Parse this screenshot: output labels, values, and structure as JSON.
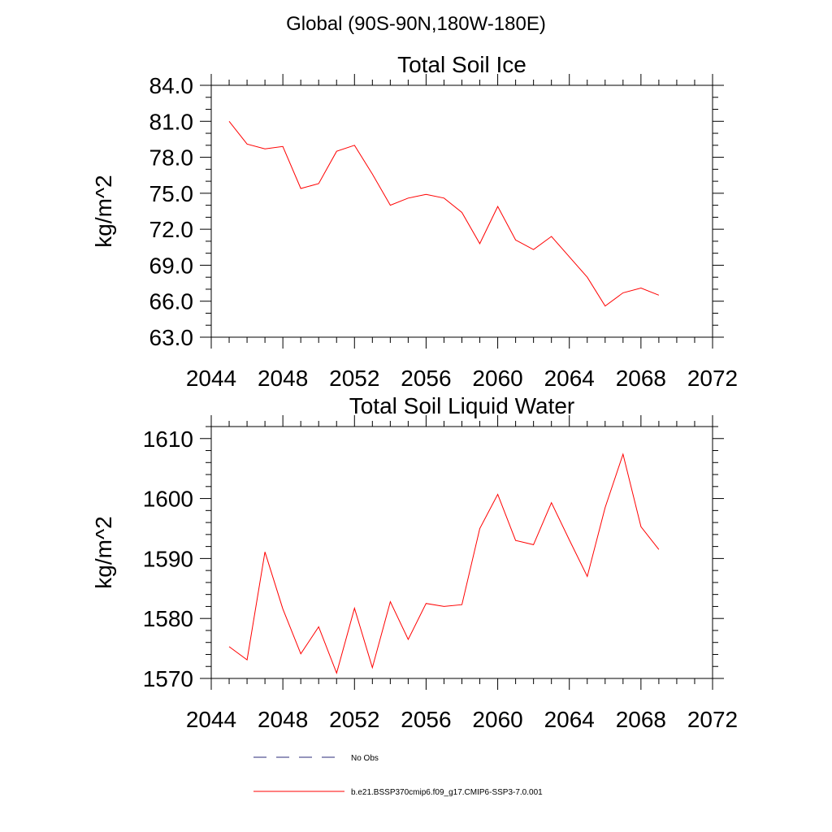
{
  "figure": {
    "title": "Global (90S-90N,180W-180E)"
  },
  "chart_data": [
    {
      "type": "line",
      "title": "Total Soil Ice",
      "xlabel": "",
      "ylabel": "kg/m^2",
      "xlim": [
        2044,
        2072
      ],
      "ylim": [
        63.0,
        84.0
      ],
      "xticks": [
        "2044",
        "2048",
        "2052",
        "2056",
        "2060",
        "2064",
        "2068",
        "2072"
      ],
      "yticks": [
        "63.0",
        "66.0",
        "69.0",
        "72.0",
        "75.0",
        "78.0",
        "81.0",
        "84.0"
      ],
      "grid": false,
      "series": [
        {
          "name": "b.e21.BSSP370cmip6.f09_g17.CMIP6-SSP3-7.0.001",
          "color": "#ff0000",
          "x": [
            2045,
            2046,
            2047,
            2048,
            2049,
            2050,
            2051,
            2052,
            2053,
            2054,
            2055,
            2056,
            2057,
            2058,
            2059,
            2060,
            2061,
            2062,
            2063,
            2064,
            2065,
            2066,
            2067,
            2068,
            2069
          ],
          "y": [
            81.0,
            79.1,
            78.7,
            78.9,
            75.4,
            75.8,
            78.5,
            79.0,
            76.6,
            74.0,
            74.6,
            74.9,
            74.6,
            73.4,
            70.8,
            73.9,
            71.1,
            70.3,
            71.4,
            69.7,
            68.0,
            65.6,
            66.7,
            67.1,
            66.5
          ]
        }
      ]
    },
    {
      "type": "line",
      "title": "Total Soil Liquid Water",
      "xlabel": "",
      "ylabel": "kg/m^2",
      "xlim": [
        2044,
        2072
      ],
      "ylim": [
        1570,
        1612
      ],
      "xticks": [
        "2044",
        "2048",
        "2052",
        "2056",
        "2060",
        "2064",
        "2068",
        "2072"
      ],
      "yticks": [
        "1570",
        "1580",
        "1590",
        "1600",
        "1610"
      ],
      "grid": false,
      "series": [
        {
          "name": "b.e21.BSSP370cmip6.f09_g17.CMIP6-SSP3-7.0.001",
          "color": "#ff0000",
          "x": [
            2045,
            2046,
            2047,
            2048,
            2049,
            2050,
            2051,
            2052,
            2053,
            2054,
            2055,
            2056,
            2057,
            2058,
            2059,
            2060,
            2061,
            2062,
            2063,
            2064,
            2065,
            2066,
            2067,
            2068,
            2069
          ],
          "y": [
            1575.3,
            1573.1,
            1591.1,
            1581.6,
            1574.1,
            1578.6,
            1570.9,
            1581.7,
            1571.8,
            1582.8,
            1576.5,
            1582.5,
            1582.0,
            1582.3,
            1595.0,
            1600.7,
            1593.0,
            1592.3,
            1599.3,
            1593.1,
            1587.0,
            1598.5,
            1607.4,
            1595.3,
            1591.5
          ]
        }
      ]
    }
  ],
  "legend": {
    "placement": "bottom",
    "entries": [
      {
        "label": "No Obs",
        "color": "#2b2b7a",
        "dash": "dashed"
      },
      {
        "label": "b.e21.BSSP370cmip6.f09_g17.CMIP6-SSP3-7.0.001",
        "color": "#ff0000",
        "dash": "solid"
      }
    ]
  }
}
